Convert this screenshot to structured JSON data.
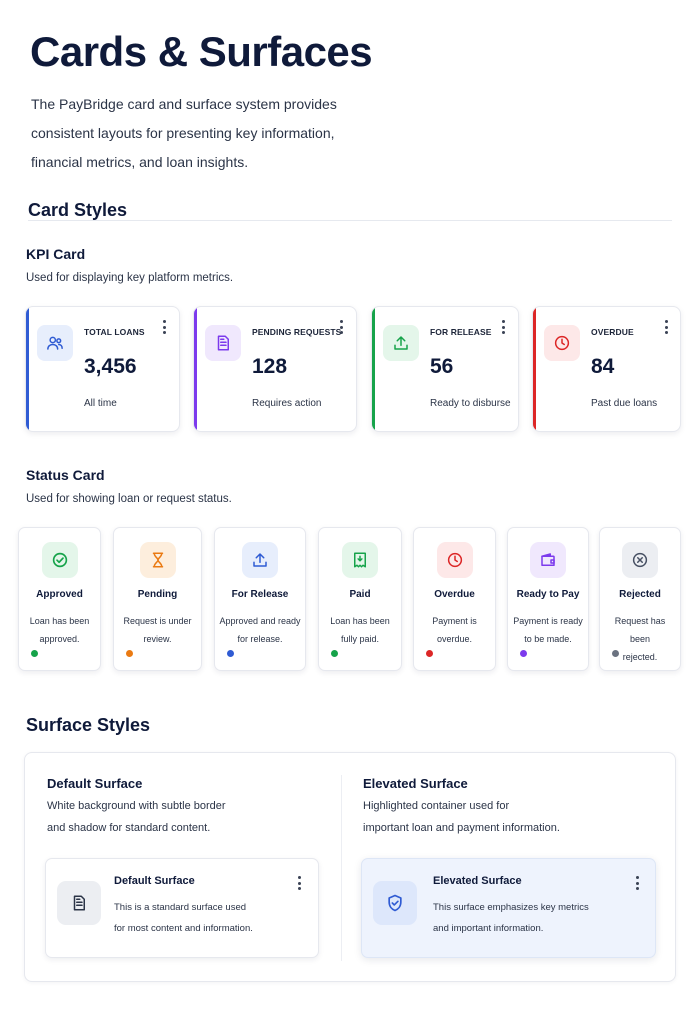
{
  "header": {
    "title": "Cards & Surfaces",
    "intro": "The PayBridge card and surface system provides consistent layouts for presenting key information, financial metrics, and loan insights."
  },
  "card_styles": {
    "heading": "Card Styles",
    "kpi": {
      "title": "KPI Card",
      "description": "Used for displaying key platform metrics.",
      "cards": [
        {
          "label": "TOTAL LOANS",
          "value": "3,456",
          "sub": "All time",
          "icon": "users-icon",
          "accent": "#2f5bd3",
          "icon_bg": "#e7eefc",
          "icon_color": "#2f5bd3"
        },
        {
          "label": "PENDING REQUESTS",
          "value": "128",
          "sub": "Requires action",
          "icon": "document-icon",
          "accent": "#7c3aed",
          "icon_bg": "#f0e8fd",
          "icon_color": "#7c3aed"
        },
        {
          "label": "FOR RELEASE",
          "value": "56",
          "sub": "Ready to disburse",
          "icon": "upload-icon",
          "accent": "#16a34a",
          "icon_bg": "#e4f6ea",
          "icon_color": "#16a34a"
        },
        {
          "label": "OVERDUE",
          "value": "84",
          "sub": "Past due loans",
          "icon": "clock-icon",
          "accent": "#dc2626",
          "icon_bg": "#fde8e8",
          "icon_color": "#dc2626"
        }
      ]
    },
    "status": {
      "title": "Status Card",
      "description": "Used for showing loan or request status.",
      "cards": [
        {
          "name": "Approved",
          "line1": "Loan has been",
          "line2": "approved.",
          "icon": "check-circle-icon",
          "color": "#16a34a",
          "icon_bg": "#e4f6ea"
        },
        {
          "name": "Pending",
          "line1": "Request is under",
          "line2": "review.",
          "icon": "hourglass-icon",
          "color": "#ea7a12",
          "icon_bg": "#fdeedd"
        },
        {
          "name": "For Release",
          "line1": "Approved and ready",
          "line2": "for release.",
          "icon": "upload-icon",
          "color": "#2f5bd3",
          "icon_bg": "#e7eefc"
        },
        {
          "name": "Paid",
          "line1": "Loan has been",
          "line2": "fully paid.",
          "icon": "receipt-icon",
          "color": "#16a34a",
          "icon_bg": "#e4f6ea"
        },
        {
          "name": "Overdue",
          "line1": "Payment is",
          "line2": "overdue.",
          "icon": "clock-icon",
          "color": "#dc2626",
          "icon_bg": "#fde8e8"
        },
        {
          "name": "Ready to Pay",
          "line1": "Payment is ready",
          "line2": "to be made.",
          "icon": "wallet-icon",
          "color": "#7c3aed",
          "icon_bg": "#f0e8fd"
        },
        {
          "name": "Rejected",
          "line1": "Request has been",
          "line2": "rejected.",
          "icon": "x-circle-icon",
          "color": "#475063",
          "icon_bg": "#eceef2"
        }
      ]
    }
  },
  "surface_styles": {
    "heading": "Surface Styles",
    "default": {
      "title": "Default Surface",
      "desc_line1": "White background with subtle border",
      "desc_line2": "and shadow for standard content.",
      "card_title": "Default Surface",
      "card_line1": "This is a standard surface used",
      "card_line2": "for most content and information.",
      "icon": "document-icon"
    },
    "elevated": {
      "title": "Elevated Surface",
      "desc_line1": "Highlighted container used for",
      "desc_line2": "important loan and payment information.",
      "card_title": "Elevated Surface",
      "card_line1": "This surface emphasizes key metrics",
      "card_line2": "and important information.",
      "icon": "shield-check-icon"
    }
  }
}
